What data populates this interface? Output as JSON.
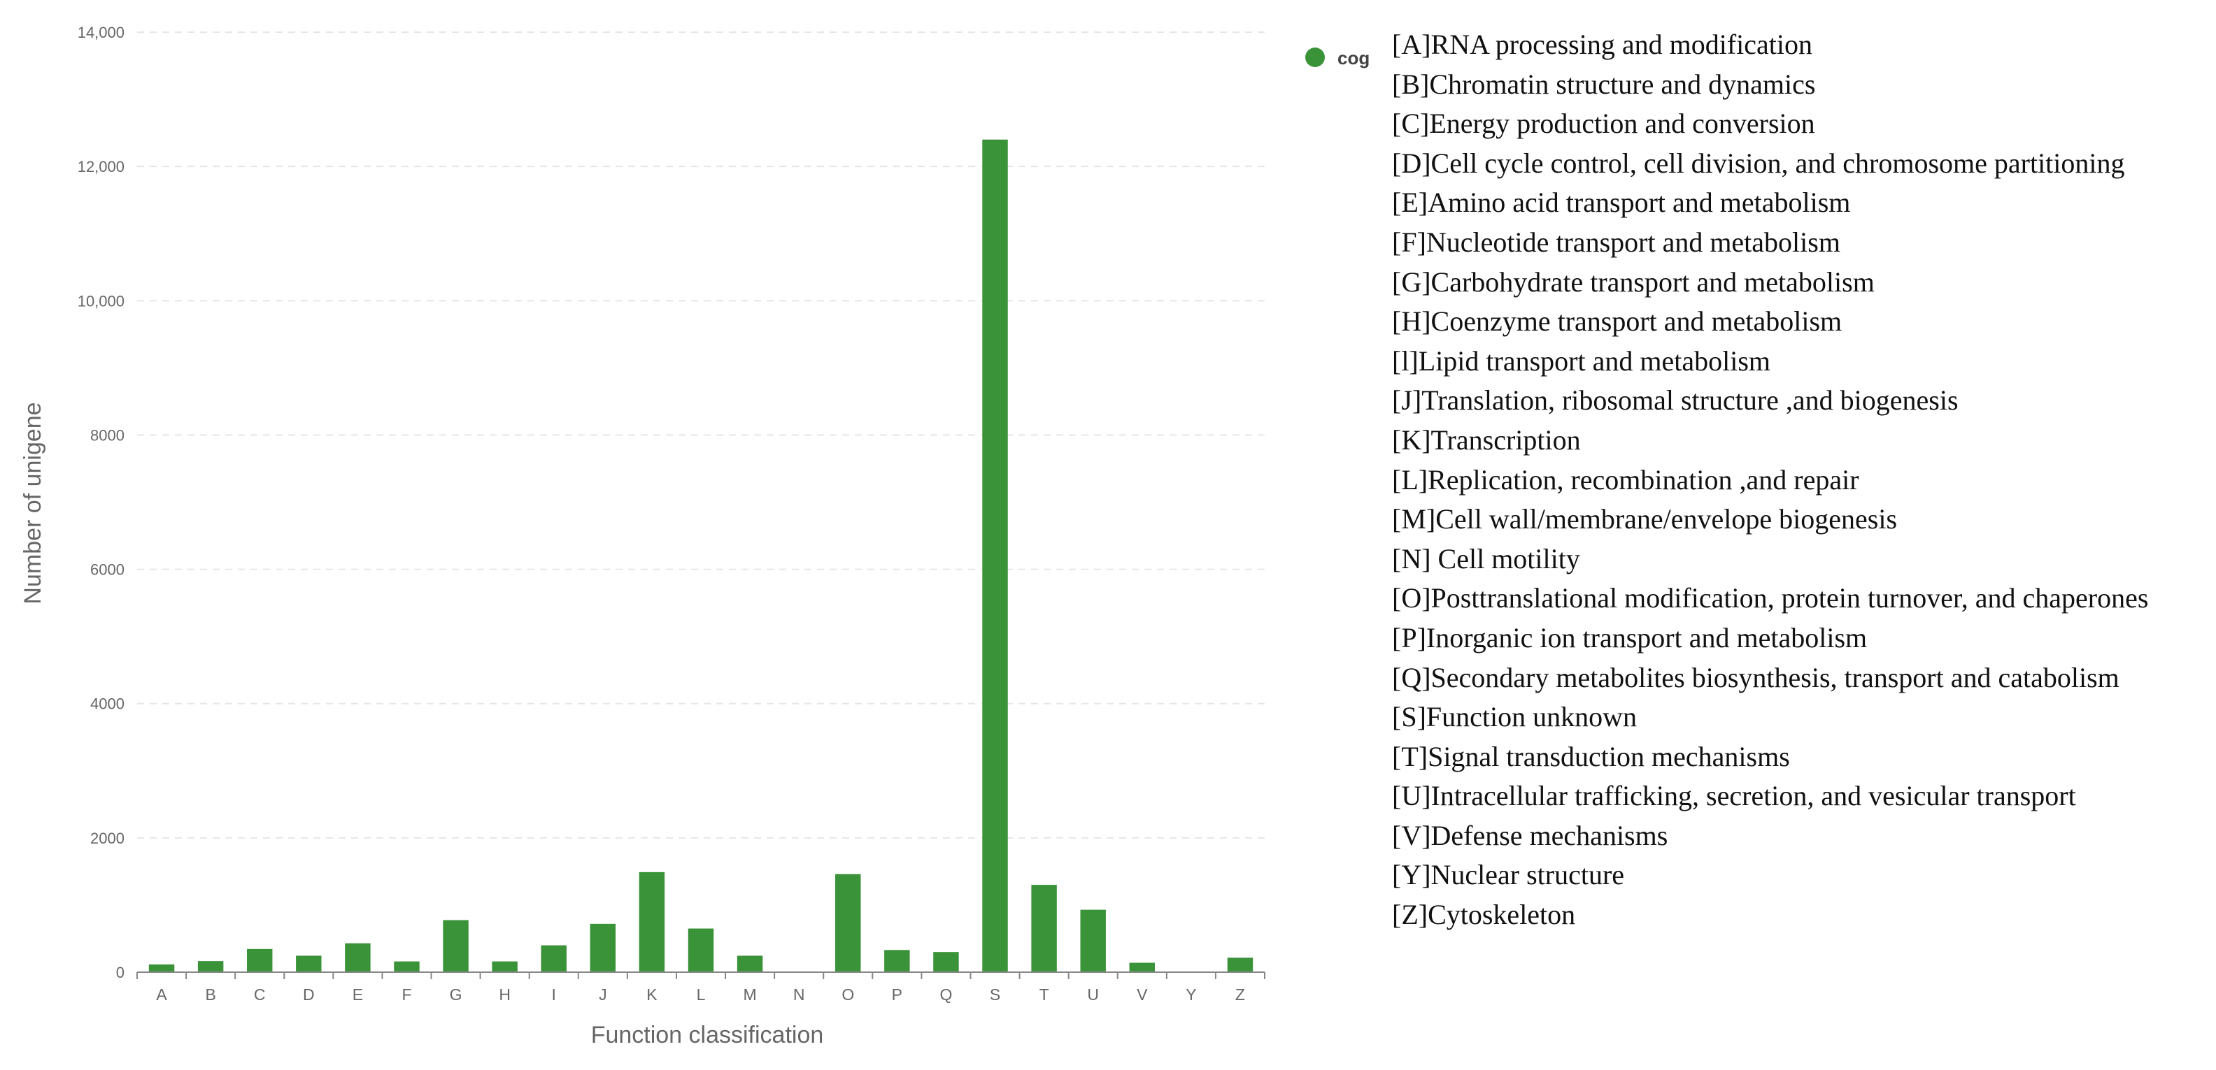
{
  "chart_data": {
    "type": "bar",
    "xlabel": "Function classification",
    "ylabel": "Number of unigene",
    "ylim": [
      0,
      14000
    ],
    "yticks": [
      0,
      2000,
      4000,
      6000,
      8000,
      10000,
      12000,
      14000
    ],
    "ytick_labels": [
      "0",
      "2000",
      "4000",
      "6000",
      "8000",
      "10,000",
      "12,000",
      "14,000"
    ],
    "grid": "horizontal dashed",
    "legend_position": "top-right",
    "categories": [
      "A",
      "B",
      "C",
      "D",
      "E",
      "F",
      "G",
      "H",
      "I",
      "J",
      "K",
      "L",
      "M",
      "N",
      "O",
      "P",
      "Q",
      "S",
      "T",
      "U",
      "V",
      "Y",
      "Z"
    ],
    "series": [
      {
        "name": "cog",
        "color": "#3a9339",
        "values": [
          115,
          165,
          345,
          245,
          430,
          160,
          775,
          160,
          400,
          720,
          1490,
          650,
          245,
          0,
          1460,
          330,
          300,
          12400,
          1300,
          930,
          140,
          0,
          215
        ]
      }
    ]
  },
  "legend": {
    "series_label": "cog",
    "descriptions": [
      "[A]RNA processing and modification",
      "[B]Chromatin structure and dynamics",
      "[C]Energy production and conversion",
      "[D]Cell cycle control, cell division, and chromosome partitioning",
      "[E]Amino acid transport and metabolism",
      "[F]Nucleotide transport and metabolism",
      "[G]Carbohydrate transport and metabolism",
      "[H]Coenzyme transport and metabolism",
      "[l]Lipid transport and metabolism",
      "[J]Translation, ribosomal structure ,and biogenesis",
      "[K]Transcription",
      "[L]Replication, recombination ,and repair",
      "[M]Cell wall/membrane/envelope biogenesis",
      "[N] Cell motility",
      "[O]Posttranslational modification, protein turnover, and chaperones",
      "[P]Inorganic ion transport and metabolism",
      "[Q]Secondary metabolites biosynthesis, transport and catabolism",
      "[S]Function unknown",
      "[T]Signal transduction mechanisms",
      "[U]Intracellular trafficking, secretion, and vesicular transport",
      "[V]Defense mechanisms",
      "[Y]Nuclear structure",
      "[Z]Cytoskeleton"
    ]
  }
}
